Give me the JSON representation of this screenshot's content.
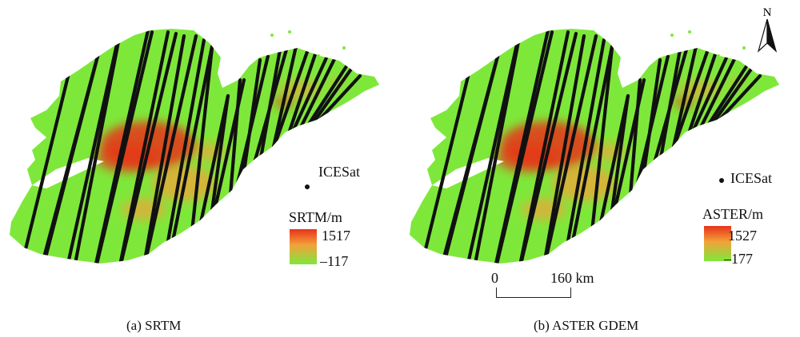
{
  "panels": [
    {
      "caption": "(a) SRTM",
      "legend": {
        "title": "SRTM/m",
        "max": "1517",
        "min": "–117"
      },
      "points_label": "ICESat"
    },
    {
      "caption": "(b) ASTER GDEM",
      "legend": {
        "title": "ASTER/m",
        "max": "1527",
        "min": "–177"
      },
      "points_label": "ICESat"
    }
  ],
  "scale_bar": {
    "start": "0",
    "end": "160 km"
  },
  "north_arrow": {
    "label": "N"
  },
  "colors": {
    "low": "#7ee83a",
    "mid": "#f2a23a",
    "high": "#e8321a",
    "track": "#111111"
  }
}
